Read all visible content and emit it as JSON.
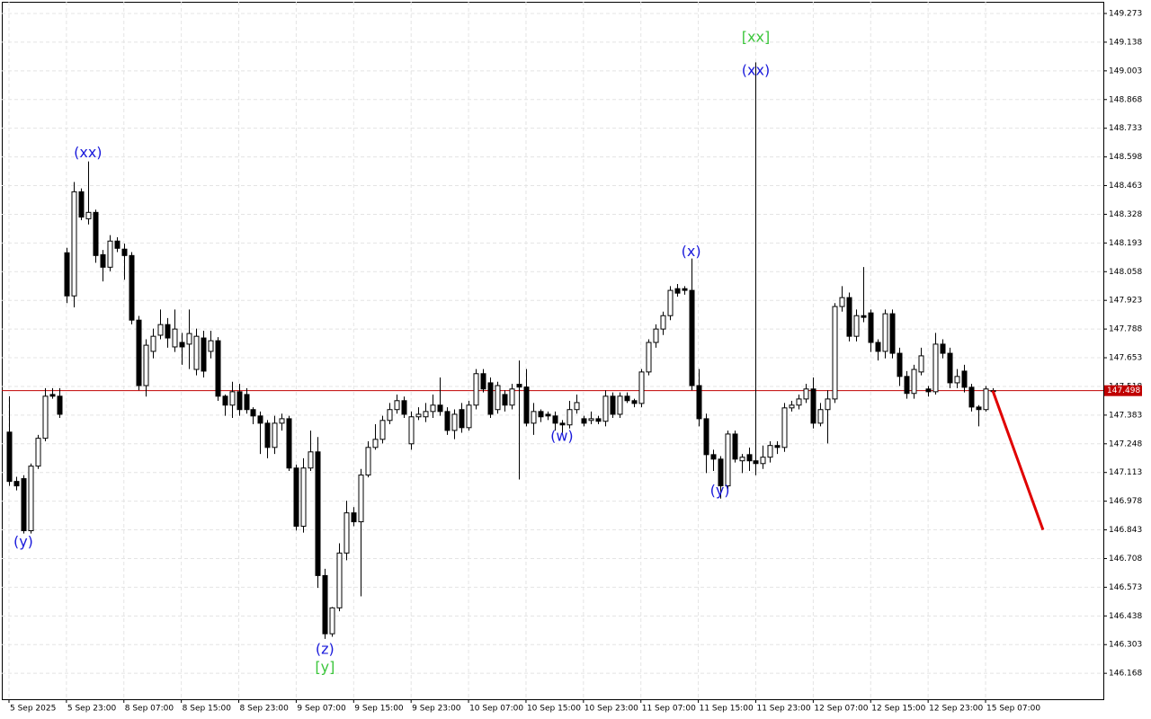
{
  "chart_data": {
    "type": "candlestick",
    "open": [
      147.303,
      147.071,
      147.084,
      146.839,
      147.143,
      147.274,
      147.48,
      147.472,
      148.147,
      147.944,
      148.434,
      148.307,
      148.337,
      148.138,
      148.079,
      148.202,
      148.164,
      148.134,
      147.83,
      147.522,
      147.683,
      147.759,
      147.809,
      147.704,
      147.725,
      147.717,
      147.598,
      147.746,
      147.683,
      147.733,
      147.472,
      147.43,
      147.493,
      147.48,
      147.409,
      147.379,
      147.345,
      147.231,
      147.345,
      147.366,
      147.134,
      146.86,
      147.134,
      147.21,
      146.628,
      146.354,
      146.476,
      146.734,
      146.923,
      146.881,
      147.101,
      147.231,
      147.269,
      147.358,
      147.409,
      147.451,
      147.248,
      147.375,
      147.375,
      147.4,
      147.43,
      147.4,
      147.311,
      147.409,
      147.324,
      147.43,
      147.578,
      147.535,
      147.409,
      147.48,
      147.43,
      147.528,
      147.515,
      147.345,
      147.4,
      147.387,
      147.379,
      147.345,
      147.337,
      147.409,
      147.366,
      147.358,
      147.366,
      147.354,
      147.472,
      147.387,
      147.472,
      147.451,
      147.438,
      147.586,
      147.725,
      147.788,
      147.851,
      147.978,
      147.978,
      147.97,
      147.522,
      147.366,
      147.197,
      147.176,
      147.05,
      147.294,
      147.168,
      147.197,
      147.168,
      147.155,
      147.185,
      147.24,
      147.231,
      147.417,
      147.43,
      147.459,
      147.506,
      147.345,
      147.409,
      147.459,
      147.894,
      147.936,
      147.754,
      147.851,
      147.864,
      147.725,
      147.683,
      147.86,
      147.674,
      147.565,
      147.485,
      147.586,
      147.506,
      147.493,
      147.717,
      147.674,
      147.535,
      147.59,
      147.514,
      147.421,
      147.409,
      147.498
    ],
    "high": [
      147.472,
      147.093,
      147.1,
      147.155,
      147.29,
      147.51,
      147.51,
      147.51,
      148.17,
      148.48,
      148.45,
      148.577,
      148.35,
      148.16,
      148.23,
      148.22,
      148.19,
      148.15,
      147.85,
      147.74,
      147.79,
      147.88,
      147.84,
      147.88,
      147.77,
      147.88,
      147.79,
      147.78,
      147.78,
      147.75,
      147.48,
      147.54,
      147.53,
      147.51,
      147.42,
      147.4,
      147.36,
      147.38,
      147.39,
      147.38,
      147.15,
      147.18,
      147.31,
      147.28,
      146.66,
      146.48,
      146.78,
      146.98,
      146.95,
      147.13,
      147.26,
      147.34,
      147.38,
      147.44,
      147.48,
      147.47,
      147.4,
      147.42,
      147.44,
      147.48,
      147.56,
      147.42,
      147.41,
      147.44,
      147.45,
      147.6,
      147.6,
      147.56,
      147.54,
      147.5,
      147.53,
      147.64,
      147.6,
      147.44,
      147.41,
      147.4,
      147.4,
      147.36,
      147.45,
      147.48,
      147.38,
      147.4,
      147.38,
      147.5,
      147.49,
      147.49,
      147.49,
      147.46,
      147.6,
      147.74,
      147.81,
      147.87,
      147.99,
      148.0,
      147.99,
      148.12,
      147.6,
      147.39,
      147.22,
      147.19,
      147.31,
      147.31,
      147.2,
      147.23,
      149.043,
      147.24,
      147.26,
      147.26,
      147.44,
      147.45,
      147.48,
      147.53,
      147.56,
      147.44,
      147.5,
      147.91,
      147.99,
      147.96,
      147.88,
      148.08,
      147.88,
      147.74,
      147.88,
      147.88,
      147.7,
      147.59,
      147.62,
      147.7,
      147.52,
      147.77,
      147.74,
      147.7,
      147.6,
      147.62,
      147.53,
      147.43,
      147.52,
      147.51
    ],
    "low": [
      147.05,
      147.029,
      146.826,
      146.826,
      147.13,
      147.26,
      147.46,
      147.37,
      147.91,
      147.89,
      148.3,
      148.28,
      148.1,
      148.012,
      148.06,
      148.15,
      148.02,
      147.81,
      147.5,
      147.47,
      147.65,
      147.74,
      147.7,
      147.68,
      147.62,
      147.6,
      147.57,
      147.56,
      147.65,
      147.45,
      147.38,
      147.37,
      147.38,
      147.39,
      147.34,
      147.2,
      147.18,
      147.2,
      147.31,
      147.12,
      146.84,
      146.83,
      147.12,
      146.57,
      146.33,
      146.34,
      146.46,
      146.7,
      146.86,
      146.53,
      147.09,
      147.22,
      147.25,
      147.34,
      147.39,
      147.37,
      147.22,
      147.36,
      147.35,
      147.37,
      147.38,
      147.29,
      147.27,
      147.3,
      147.31,
      147.41,
      147.49,
      147.37,
      147.39,
      147.4,
      147.41,
      147.08,
      147.33,
      147.29,
      147.35,
      147.36,
      147.31,
      147.3,
      147.32,
      147.39,
      147.33,
      147.34,
      147.34,
      147.33,
      147.37,
      147.37,
      147.44,
      147.42,
      147.42,
      147.57,
      147.7,
      147.76,
      147.83,
      147.94,
      147.95,
      147.5,
      147.33,
      147.11,
      147.12,
      146.99,
      147.03,
      147.16,
      147.11,
      147.12,
      147.1,
      147.13,
      147.16,
      147.2,
      147.21,
      147.4,
      147.41,
      147.44,
      147.32,
      147.33,
      147.25,
      147.44,
      147.87,
      147.73,
      147.73,
      147.82,
      147.68,
      147.64,
      147.65,
      147.65,
      147.52,
      147.46,
      147.46,
      147.57,
      147.47,
      147.48,
      147.65,
      147.51,
      147.51,
      147.49,
      147.4,
      147.33,
      147.4,
      147.48
    ],
    "close": [
      147.071,
      147.05,
      146.839,
      147.143,
      147.274,
      147.472,
      147.472,
      147.387,
      147.944,
      148.434,
      148.315,
      148.337,
      148.134,
      148.079,
      148.202,
      148.168,
      148.134,
      147.83,
      147.522,
      147.712,
      147.754,
      147.809,
      147.746,
      147.788,
      147.704,
      147.767,
      147.754,
      147.59,
      147.733,
      147.472,
      147.43,
      147.493,
      147.409,
      147.409,
      147.379,
      147.345,
      147.231,
      147.345,
      147.366,
      147.134,
      146.86,
      147.134,
      147.21,
      146.628,
      146.354,
      146.476,
      146.734,
      146.923,
      146.881,
      147.101,
      147.231,
      147.269,
      147.358,
      147.409,
      147.451,
      147.387,
      147.375,
      147.387,
      147.4,
      147.43,
      147.4,
      147.311,
      147.387,
      147.324,
      147.43,
      147.578,
      147.506,
      147.387,
      147.522,
      147.43,
      147.506,
      147.515,
      147.345,
      147.4,
      147.375,
      147.379,
      147.345,
      147.337,
      147.409,
      147.442,
      147.345,
      147.366,
      147.354,
      147.472,
      147.387,
      147.472,
      147.451,
      147.438,
      147.586,
      147.725,
      147.788,
      147.851,
      147.97,
      147.957,
      147.97,
      147.522,
      147.366,
      147.197,
      147.176,
      147.05,
      147.294,
      147.176,
      147.185,
      147.168,
      147.155,
      147.185,
      147.24,
      147.231,
      147.417,
      147.43,
      147.459,
      147.506,
      147.345,
      147.409,
      147.459,
      147.894,
      147.936,
      147.754,
      147.851,
      147.843,
      147.725,
      147.683,
      147.86,
      147.674,
      147.565,
      147.485,
      147.598,
      147.662,
      147.493,
      147.717,
      147.674,
      147.535,
      147.565,
      147.514,
      147.421,
      147.409,
      147.506,
      147.498
    ],
    "ylim": [
      146.046,
      149.328
    ],
    "yticks": [
      149.273,
      149.138,
      149.003,
      148.868,
      148.733,
      148.598,
      148.463,
      148.328,
      148.193,
      148.058,
      147.923,
      147.788,
      147.653,
      147.518,
      147.383,
      147.248,
      147.113,
      146.978,
      146.843,
      146.708,
      146.573,
      146.438,
      146.303,
      146.168
    ],
    "xticks": [
      {
        "value": 0,
        "label": "5 Sep 2025"
      },
      {
        "value": 8,
        "label": "5 Sep 23:00"
      },
      {
        "value": 16,
        "label": "8 Sep 07:00"
      },
      {
        "value": 24,
        "label": "8 Sep 15:00"
      },
      {
        "value": 32,
        "label": "8 Sep 23:00"
      },
      {
        "value": 40,
        "label": "9 Sep 07:00"
      },
      {
        "value": 48,
        "label": "9 Sep 15:00"
      },
      {
        "value": 56,
        "label": "9 Sep 23:00"
      },
      {
        "value": 64,
        "label": "10 Sep 07:00"
      },
      {
        "value": 72,
        "label": "10 Sep 15:00"
      },
      {
        "value": 80,
        "label": "10 Sep 23:00"
      },
      {
        "value": 88,
        "label": "11 Sep 07:00"
      },
      {
        "value": 96,
        "label": "11 Sep 15:00"
      },
      {
        "value": 104,
        "label": "11 Sep 23:00"
      },
      {
        "value": 112,
        "label": "12 Sep 07:00"
      },
      {
        "value": 120,
        "label": "12 Sep 15:00"
      },
      {
        "value": 128,
        "label": "12 Sep 23:00"
      },
      {
        "value": 136,
        "label": "15 Sep 07:00"
      }
    ],
    "xlim": [
      -1,
      152.4
    ],
    "grid": true,
    "last_price": 147.498,
    "last_price_color": "#c00000",
    "forecast": {
      "color": "#e00000",
      "x": [
        137,
        144
      ],
      "values": [
        147.498,
        146.843
      ]
    },
    "annotations": [
      {
        "text": "(y)",
        "x": 2,
        "y": 146.784,
        "color": "#1a1adb"
      },
      {
        "text": "(xx)",
        "x": 11,
        "y": 148.615,
        "color": "#1a1adb"
      },
      {
        "text": "(z)",
        "x": 44,
        "y": 146.278,
        "color": "#1a1adb"
      },
      {
        "text": "[y]",
        "x": 44,
        "y": 146.194,
        "color": "#3cc63c"
      },
      {
        "text": "(w)",
        "x": 77,
        "y": 147.282,
        "color": "#1a1adb"
      },
      {
        "text": "(x)",
        "x": 95,
        "y": 148.151,
        "color": "#1a1adb"
      },
      {
        "text": "(y)",
        "x": 99,
        "y": 147.025,
        "color": "#1a1adb"
      },
      {
        "text": "(xx)",
        "x": 104,
        "y": 149.003,
        "color": "#1a1adb"
      },
      {
        "text": "[xx]",
        "x": 104,
        "y": 149.159,
        "color": "#3cc63c"
      }
    ]
  }
}
